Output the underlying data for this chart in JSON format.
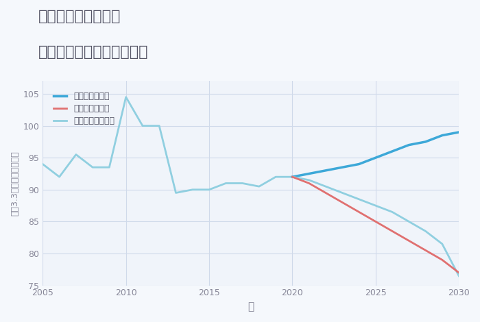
{
  "title_line1": "千葉県野田市桜木の",
  "title_line2": "中古マンションの価格推移",
  "xlabel": "年",
  "ylabel": "坪（3.3㎡）単価（万円）",
  "background_color": "#f5f8fc",
  "plot_bg_color": "#f0f4fa",
  "grid_color": "#d0daea",
  "xlim": [
    2005,
    2030
  ],
  "ylim": [
    75,
    107
  ],
  "yticks": [
    75,
    80,
    85,
    90,
    95,
    100,
    105
  ],
  "xticks": [
    2005,
    2010,
    2015,
    2020,
    2025,
    2030
  ],
  "historical_years": [
    2005,
    2006,
    2007,
    2008,
    2009,
    2010,
    2011,
    2012,
    2013,
    2014,
    2015,
    2016,
    2017,
    2018,
    2019,
    2020
  ],
  "historical_values": [
    94,
    92,
    95.5,
    93.5,
    93.5,
    104.5,
    100,
    100,
    89.5,
    90,
    90,
    91,
    91,
    90.5,
    92,
    92
  ],
  "forecast_years": [
    2020,
    2021,
    2022,
    2023,
    2024,
    2025,
    2026,
    2027,
    2028,
    2029,
    2030
  ],
  "good_values": [
    92,
    92.5,
    93.0,
    93.5,
    94.0,
    95.0,
    96.0,
    97.0,
    97.5,
    98.5,
    99.0
  ],
  "bad_values": [
    92,
    91.0,
    89.5,
    88.0,
    86.5,
    85.0,
    83.5,
    82.0,
    80.5,
    79.0,
    77.0
  ],
  "normal_values": [
    92,
    91.5,
    90.5,
    89.5,
    88.5,
    87.5,
    86.5,
    85.0,
    83.5,
    81.5,
    76.5
  ],
  "color_good": "#3da8d8",
  "color_bad": "#e07070",
  "color_normal": "#90cfe0",
  "color_historical": "#90cfe0",
  "label_good": "グッドシナリオ",
  "label_bad": "バッドシナリオ",
  "label_normal": "ノーマルシナリオ",
  "title_color": "#555566",
  "axis_label_color": "#888899",
  "tick_color": "#888899"
}
